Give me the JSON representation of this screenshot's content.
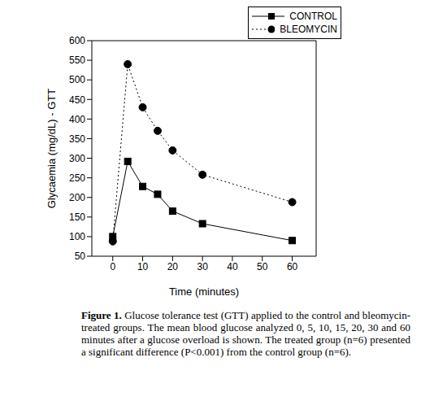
{
  "chart_data": {
    "type": "line",
    "x_label": "Time (minutes)",
    "y_label": "Glycaemia (mg/dL) - GTT",
    "x": [
      0,
      5,
      10,
      15,
      20,
      30,
      60
    ],
    "series": [
      {
        "name": "CONTROL",
        "color": "#000000",
        "marker": "square",
        "line_style": "solid",
        "values": [
          100,
          292,
          228,
          208,
          165,
          133,
          90
        ]
      },
      {
        "name": "BLEOMYCIN",
        "color": "#000000",
        "marker": "circle",
        "line_style": "dotted",
        "values": [
          88,
          540,
          430,
          370,
          320,
          258,
          188
        ]
      }
    ],
    "xlim": [
      -7,
      68
    ],
    "xticks": [
      0,
      10,
      20,
      30,
      40,
      50,
      60
    ],
    "ylim": [
      50,
      600
    ],
    "yticks": [
      50,
      100,
      150,
      200,
      250,
      300,
      350,
      400,
      450,
      500,
      550,
      600
    ],
    "legend": "upper right",
    "caption": {
      "label": "Figure 1.",
      "text": "Glucose tolerance test (GTT) applied to the control and bleomycin-treated groups. The mean blood glucose analyzed 0, 5, 10, 15, 20, 30 and 60 minutes after a glucose overload is shown. The treated group (n=6) presented a significant difference (P<0.001) from the control group (n=6)."
    }
  }
}
